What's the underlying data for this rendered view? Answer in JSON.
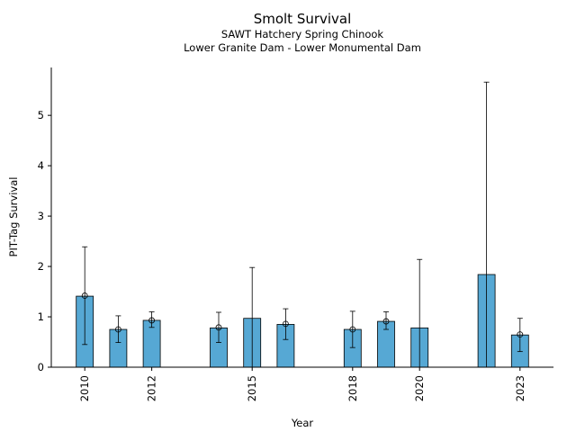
{
  "chart_data": {
    "type": "bar",
    "title": "Smolt Survival",
    "subtitle_lines": [
      "SAWT Hatchery Spring Chinook",
      "Lower Granite Dam - Lower Monumental Dam"
    ],
    "xlabel": "Year",
    "ylabel": "PIT-Tag Survival",
    "ylim": [
      0,
      5.95
    ],
    "yticks": [
      0,
      1,
      2,
      3,
      4,
      5
    ],
    "xlim": [
      2009.0,
      2024.0
    ],
    "xticks": [
      2010,
      2012,
      2015,
      2018,
      2020,
      2023
    ],
    "bar_color": "#56a8d4",
    "x": [
      2010,
      2011,
      2012,
      2014,
      2015,
      2016,
      2018,
      2019,
      2020,
      2022,
      2023
    ],
    "values": [
      1.41,
      0.75,
      0.93,
      0.78,
      0.97,
      0.85,
      0.75,
      0.91,
      0.78,
      1.84,
      0.64
    ],
    "point_estimates": [
      1.42,
      0.75,
      0.93,
      0.79,
      null,
      0.86,
      0.75,
      0.91,
      null,
      null,
      0.65
    ],
    "error_low": [
      0.45,
      0.49,
      0.79,
      0.49,
      0.0,
      0.55,
      0.39,
      0.75,
      0.0,
      0.0,
      0.31
    ],
    "error_high": [
      2.39,
      1.02,
      1.1,
      1.09,
      1.98,
      1.16,
      1.11,
      1.1,
      2.14,
      5.66,
      0.97
    ],
    "grid": false,
    "legend": "none"
  }
}
